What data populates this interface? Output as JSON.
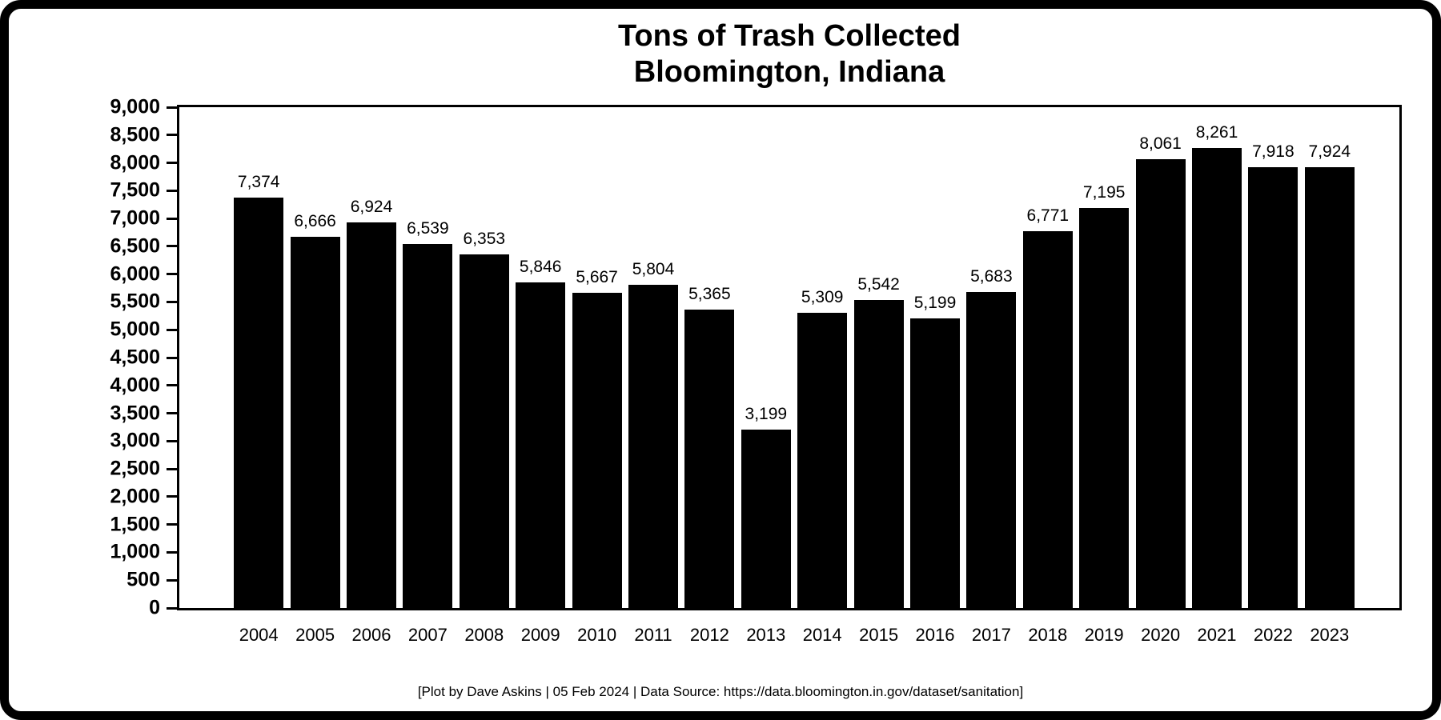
{
  "title": {
    "line1": "Tons of Trash Collected",
    "line2": "Bloomington, Indiana"
  },
  "footer": "[Plot by Dave Askins | 05 Feb 2024 | Data Source: https://data.bloomington.in.gov/dataset/sanitation]",
  "colors": {
    "bar": "#000000",
    "axis": "#000000",
    "frame": "#000000",
    "background": "#ffffff",
    "text": "#000000"
  },
  "chart_data": {
    "type": "bar",
    "title": "Tons of Trash Collected",
    "subtitle": "Bloomington, Indiana",
    "categories": [
      "2004",
      "2005",
      "2006",
      "2007",
      "2008",
      "2009",
      "2010",
      "2011",
      "2012",
      "2013",
      "2014",
      "2015",
      "2016",
      "2017",
      "2018",
      "2019",
      "2020",
      "2021",
      "2022",
      "2023"
    ],
    "values": [
      7374,
      6666,
      6924,
      6539,
      6353,
      5846,
      5667,
      5804,
      5365,
      3199,
      5309,
      5542,
      5199,
      5683,
      6771,
      7195,
      8061,
      8261,
      7918,
      7924
    ],
    "bar_labels": [
      "7,374",
      "6,666",
      "6,924",
      "6,539",
      "6,353",
      "5,846",
      "5,667",
      "5,804",
      "5,365",
      "3,199",
      "5,309",
      "5,542",
      "5,199",
      "5,683",
      "6,771",
      "7,195",
      "8,061",
      "8,261",
      "7,918",
      "7,924"
    ],
    "xlabel": "",
    "ylabel": "",
    "ylim": [
      0,
      9000
    ],
    "ytick_step": 500,
    "ytick_labels": [
      "0",
      "500",
      "1,000",
      "1,500",
      "2,000",
      "2,500",
      "3,000",
      "3,500",
      "4,000",
      "4,500",
      "5,000",
      "5,500",
      "6,000",
      "6,500",
      "7,000",
      "7,500",
      "8,000",
      "8,500",
      "9,000"
    ],
    "grid": false,
    "legend": false,
    "value_labels_shown": true
  }
}
